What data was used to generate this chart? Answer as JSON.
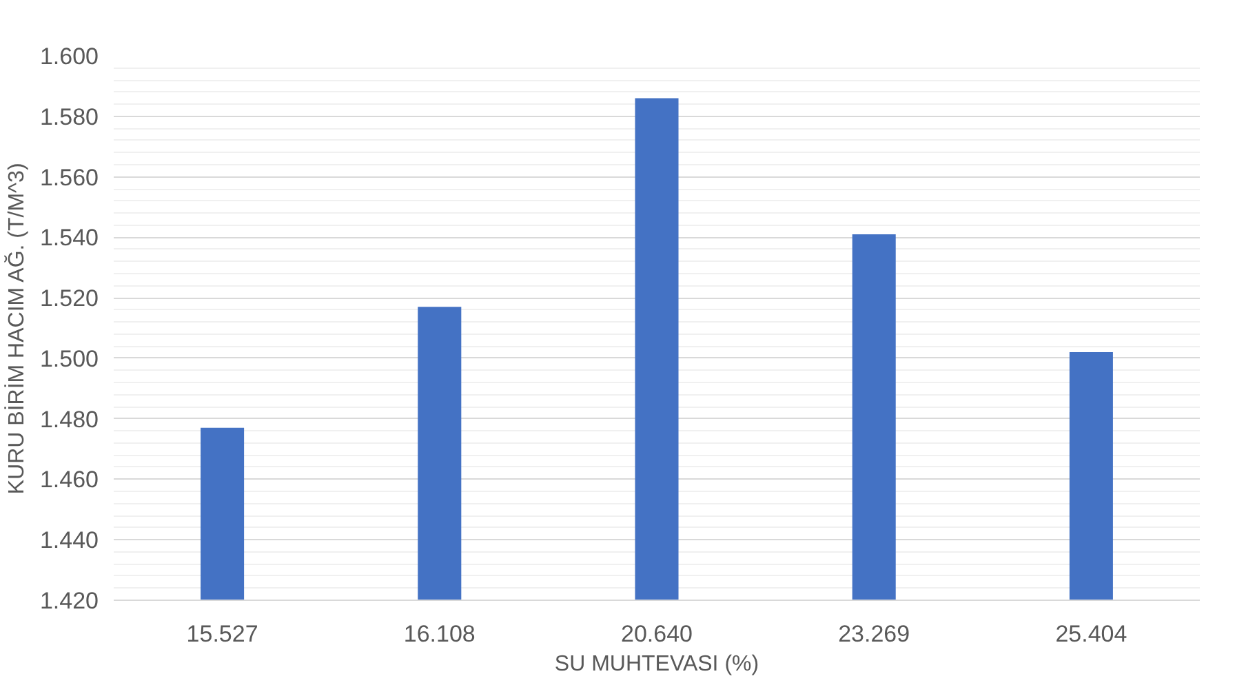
{
  "chart_data": {
    "type": "bar",
    "xlabel": "SU MUHTEVASI (%)",
    "ylabel": "KURU BİRİM HACIM AĞ. (T/M^3)",
    "categories": [
      "15.527",
      "16.108",
      "20.640",
      "23.269",
      "25.404"
    ],
    "values": [
      1.477,
      1.517,
      1.586,
      1.541,
      1.502
    ],
    "color": "#4472c4",
    "ylim": [
      1.42,
      1.6
    ],
    "yticks": [
      {
        "value": 1.42,
        "label": "1.420"
      },
      {
        "value": 1.44,
        "label": "1.440"
      },
      {
        "value": 1.46,
        "label": "1.460"
      },
      {
        "value": 1.48,
        "label": "1.480"
      },
      {
        "value": 1.5,
        "label": "1.500"
      },
      {
        "value": 1.52,
        "label": "1.520"
      },
      {
        "value": 1.54,
        "label": "1.540"
      },
      {
        "value": 1.56,
        "label": "1.560"
      },
      {
        "value": 1.58,
        "label": "1.580"
      },
      {
        "value": 1.6,
        "label": "1.600"
      }
    ],
    "grid": "y"
  }
}
